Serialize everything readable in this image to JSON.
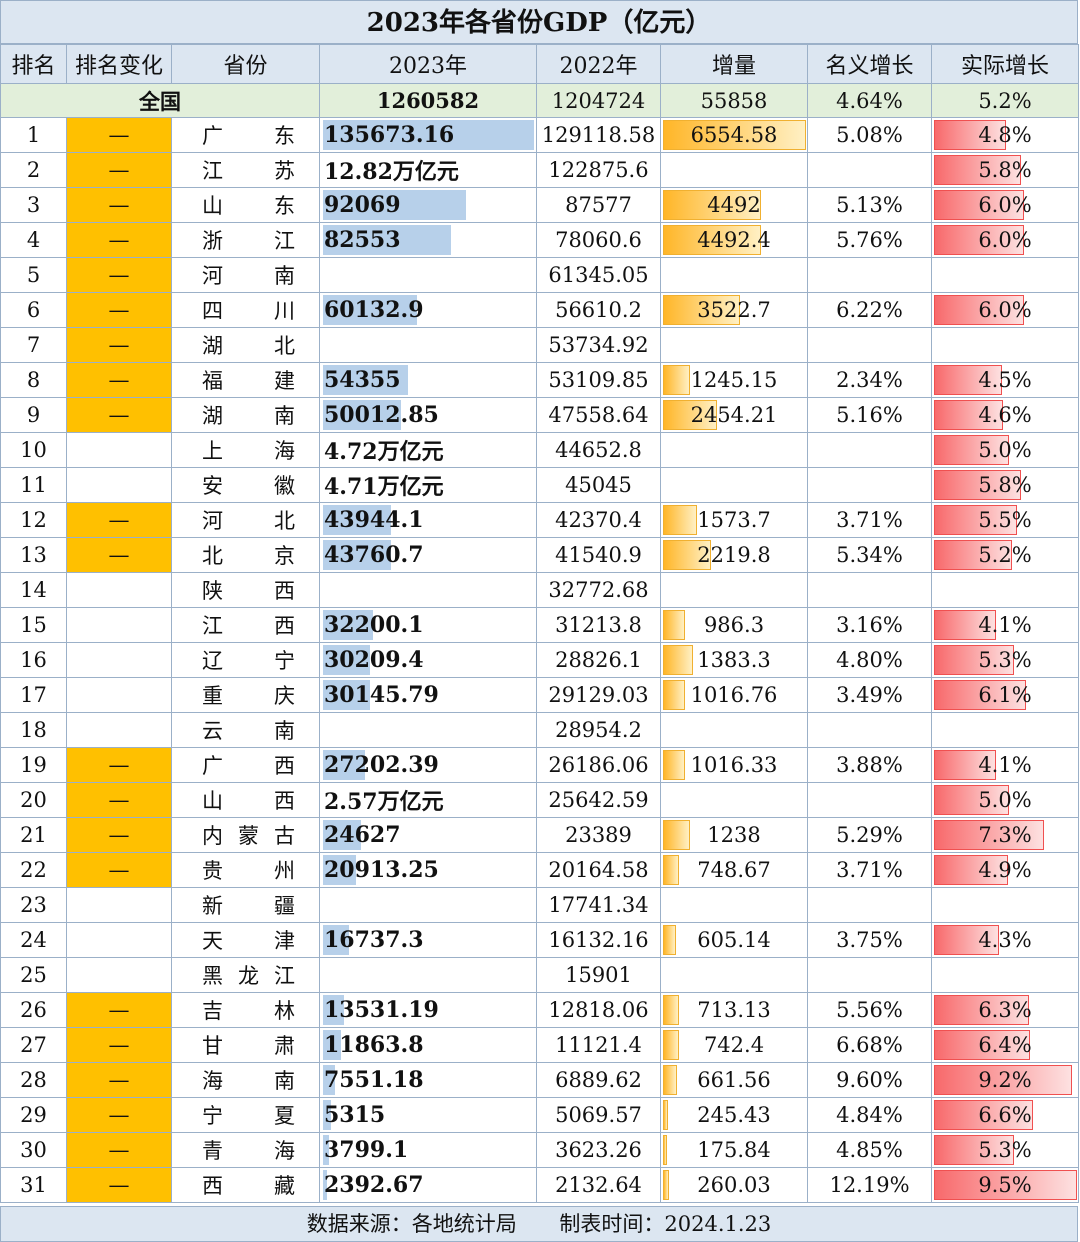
{
  "title": "2023年各省份GDP（亿元）",
  "headers": [
    "排名",
    "排名变化",
    "省份",
    "2023年",
    "2022年",
    "增量",
    "名义增长",
    "实际增长"
  ],
  "national": {
    "name": "全国",
    "gdp2023": "1260582",
    "gdp2022": "1204724",
    "increase": "55858",
    "nominal": "4.64%",
    "real": "5.2%"
  },
  "colors": {
    "header_bg": "#dce6f1",
    "national_bg": "#e2efda",
    "change_highlight": "#ffc000",
    "gdp_bar": "#b7d0ea",
    "increase_bar": "#ffb628",
    "real_bar": "#f8696b"
  },
  "scale": {
    "gdp_max": 135673.16,
    "increase_max": 6554.58,
    "real_max": 9.5
  },
  "rows": [
    {
      "rank": "1",
      "change": "—",
      "hl": true,
      "province": "广东",
      "gdp2023": "135673.16",
      "gdp_num": 135673.16,
      "gdp2022": "129118.58",
      "increase": "6554.58",
      "inc_num": 6554.58,
      "nominal": "5.08%",
      "real": "4.8%",
      "real_num": 4.8
    },
    {
      "rank": "2",
      "change": "—",
      "hl": true,
      "province": "江苏",
      "gdp2023": "12.82万亿元",
      "gdp_num": null,
      "gdp2022": "122875.6",
      "increase": "",
      "inc_num": null,
      "nominal": "",
      "real": "5.8%",
      "real_num": 5.8
    },
    {
      "rank": "3",
      "change": "—",
      "hl": true,
      "province": "山东",
      "gdp2023": "92069",
      "gdp_num": 92069,
      "gdp2022": "87577",
      "increase": "4492",
      "inc_num": 4492,
      "nominal": "5.13%",
      "real": "6.0%",
      "real_num": 6.0
    },
    {
      "rank": "4",
      "change": "—",
      "hl": true,
      "province": "浙江",
      "gdp2023": "82553",
      "gdp_num": 82553,
      "gdp2022": "78060.6",
      "increase": "4492.4",
      "inc_num": 4492.4,
      "nominal": "5.76%",
      "real": "6.0%",
      "real_num": 6.0
    },
    {
      "rank": "5",
      "change": "—",
      "hl": true,
      "province": "河南",
      "gdp2023": "",
      "gdp_num": null,
      "gdp2022": "61345.05",
      "increase": "",
      "inc_num": null,
      "nominal": "",
      "real": "",
      "real_num": null
    },
    {
      "rank": "6",
      "change": "—",
      "hl": true,
      "province": "四川",
      "gdp2023": "60132.9",
      "gdp_num": 60132.9,
      "gdp2022": "56610.2",
      "increase": "3522.7",
      "inc_num": 3522.7,
      "nominal": "6.22%",
      "real": "6.0%",
      "real_num": 6.0
    },
    {
      "rank": "7",
      "change": "—",
      "hl": true,
      "province": "湖北",
      "gdp2023": "",
      "gdp_num": null,
      "gdp2022": "53734.92",
      "increase": "",
      "inc_num": null,
      "nominal": "",
      "real": "",
      "real_num": null
    },
    {
      "rank": "8",
      "change": "—",
      "hl": true,
      "province": "福建",
      "gdp2023": "54355",
      "gdp_num": 54355,
      "gdp2022": "53109.85",
      "increase": "1245.15",
      "inc_num": 1245.15,
      "nominal": "2.34%",
      "real": "4.5%",
      "real_num": 4.5
    },
    {
      "rank": "9",
      "change": "—",
      "hl": true,
      "province": "湖南",
      "gdp2023": "50012.85",
      "gdp_num": 50012.85,
      "gdp2022": "47558.64",
      "increase": "2454.21",
      "inc_num": 2454.21,
      "nominal": "5.16%",
      "real": "4.6%",
      "real_num": 4.6
    },
    {
      "rank": "10",
      "change": "",
      "hl": false,
      "province": "上海",
      "gdp2023": "4.72万亿元",
      "gdp_num": null,
      "gdp2022": "44652.8",
      "increase": "",
      "inc_num": null,
      "nominal": "",
      "real": "5.0%",
      "real_num": 5.0
    },
    {
      "rank": "11",
      "change": "",
      "hl": false,
      "province": "安徽",
      "gdp2023": "4.71万亿元",
      "gdp_num": null,
      "gdp2022": "45045",
      "increase": "",
      "inc_num": null,
      "nominal": "",
      "real": "5.8%",
      "real_num": 5.8
    },
    {
      "rank": "12",
      "change": "—",
      "hl": true,
      "province": "河北",
      "gdp2023": "43944.1",
      "gdp_num": 43944.1,
      "gdp2022": "42370.4",
      "increase": "1573.7",
      "inc_num": 1573.7,
      "nominal": "3.71%",
      "real": "5.5%",
      "real_num": 5.5
    },
    {
      "rank": "13",
      "change": "—",
      "hl": true,
      "province": "北京",
      "gdp2023": "43760.7",
      "gdp_num": 43760.7,
      "gdp2022": "41540.9",
      "increase": "2219.8",
      "inc_num": 2219.8,
      "nominal": "5.34%",
      "real": "5.2%",
      "real_num": 5.2
    },
    {
      "rank": "14",
      "change": "",
      "hl": false,
      "province": "陕西",
      "gdp2023": "",
      "gdp_num": null,
      "gdp2022": "32772.68",
      "increase": "",
      "inc_num": null,
      "nominal": "",
      "real": "",
      "real_num": null
    },
    {
      "rank": "15",
      "change": "",
      "hl": false,
      "province": "江西",
      "gdp2023": "32200.1",
      "gdp_num": 32200.1,
      "gdp2022": "31213.8",
      "increase": "986.3",
      "inc_num": 986.3,
      "nominal": "3.16%",
      "real": "4.1%",
      "real_num": 4.1
    },
    {
      "rank": "16",
      "change": "",
      "hl": false,
      "province": "辽宁",
      "gdp2023": "30209.4",
      "gdp_num": 30209.4,
      "gdp2022": "28826.1",
      "increase": "1383.3",
      "inc_num": 1383.3,
      "nominal": "4.80%",
      "real": "5.3%",
      "real_num": 5.3
    },
    {
      "rank": "17",
      "change": "",
      "hl": false,
      "province": "重庆",
      "gdp2023": "30145.79",
      "gdp_num": 30145.79,
      "gdp2022": "29129.03",
      "increase": "1016.76",
      "inc_num": 1016.76,
      "nominal": "3.49%",
      "real": "6.1%",
      "real_num": 6.1
    },
    {
      "rank": "18",
      "change": "",
      "hl": false,
      "province": "云南",
      "gdp2023": "",
      "gdp_num": null,
      "gdp2022": "28954.2",
      "increase": "",
      "inc_num": null,
      "nominal": "",
      "real": "",
      "real_num": null
    },
    {
      "rank": "19",
      "change": "—",
      "hl": true,
      "province": "广西",
      "gdp2023": "27202.39",
      "gdp_num": 27202.39,
      "gdp2022": "26186.06",
      "increase": "1016.33",
      "inc_num": 1016.33,
      "nominal": "3.88%",
      "real": "4.1%",
      "real_num": 4.1
    },
    {
      "rank": "20",
      "change": "—",
      "hl": true,
      "province": "山西",
      "gdp2023": "2.57万亿元",
      "gdp_num": null,
      "gdp2022": "25642.59",
      "increase": "",
      "inc_num": null,
      "nominal": "",
      "real": "5.0%",
      "real_num": 5.0
    },
    {
      "rank": "21",
      "change": "—",
      "hl": true,
      "province": "内蒙古",
      "gdp2023": "24627",
      "gdp_num": 24627,
      "gdp2022": "23389",
      "increase": "1238",
      "inc_num": 1238,
      "nominal": "5.29%",
      "real": "7.3%",
      "real_num": 7.3
    },
    {
      "rank": "22",
      "change": "—",
      "hl": true,
      "province": "贵州",
      "gdp2023": "20913.25",
      "gdp_num": 20913.25,
      "gdp2022": "20164.58",
      "increase": "748.67",
      "inc_num": 748.67,
      "nominal": "3.71%",
      "real": "4.9%",
      "real_num": 4.9
    },
    {
      "rank": "23",
      "change": "",
      "hl": false,
      "province": "新疆",
      "gdp2023": "",
      "gdp_num": null,
      "gdp2022": "17741.34",
      "increase": "",
      "inc_num": null,
      "nominal": "",
      "real": "",
      "real_num": null
    },
    {
      "rank": "24",
      "change": "",
      "hl": false,
      "province": "天津",
      "gdp2023": "16737.3",
      "gdp_num": 16737.3,
      "gdp2022": "16132.16",
      "increase": "605.14",
      "inc_num": 605.14,
      "nominal": "3.75%",
      "real": "4.3%",
      "real_num": 4.3
    },
    {
      "rank": "25",
      "change": "",
      "hl": false,
      "province": "黑龙江",
      "gdp2023": "",
      "gdp_num": null,
      "gdp2022": "15901",
      "increase": "",
      "inc_num": null,
      "nominal": "",
      "real": "",
      "real_num": null
    },
    {
      "rank": "26",
      "change": "—",
      "hl": true,
      "province": "吉林",
      "gdp2023": "13531.19",
      "gdp_num": 13531.19,
      "gdp2022": "12818.06",
      "increase": "713.13",
      "inc_num": 713.13,
      "nominal": "5.56%",
      "real": "6.3%",
      "real_num": 6.3
    },
    {
      "rank": "27",
      "change": "—",
      "hl": true,
      "province": "甘肃",
      "gdp2023": "11863.8",
      "gdp_num": 11863.8,
      "gdp2022": "11121.4",
      "increase": "742.4",
      "inc_num": 742.4,
      "nominal": "6.68%",
      "real": "6.4%",
      "real_num": 6.4
    },
    {
      "rank": "28",
      "change": "—",
      "hl": true,
      "province": "海南",
      "gdp2023": "7551.18",
      "gdp_num": 7551.18,
      "gdp2022": "6889.62",
      "increase": "661.56",
      "inc_num": 661.56,
      "nominal": "9.60%",
      "real": "9.2%",
      "real_num": 9.2
    },
    {
      "rank": "29",
      "change": "—",
      "hl": true,
      "province": "宁夏",
      "gdp2023": "5315",
      "gdp_num": 5315,
      "gdp2022": "5069.57",
      "increase": "245.43",
      "inc_num": 245.43,
      "nominal": "4.84%",
      "real": "6.6%",
      "real_num": 6.6
    },
    {
      "rank": "30",
      "change": "—",
      "hl": true,
      "province": "青海",
      "gdp2023": "3799.1",
      "gdp_num": 3799.1,
      "gdp2022": "3623.26",
      "increase": "175.84",
      "inc_num": 175.84,
      "nominal": "4.85%",
      "real": "5.3%",
      "real_num": 5.3
    },
    {
      "rank": "31",
      "change": "—",
      "hl": true,
      "province": "西藏",
      "gdp2023": "2392.67",
      "gdp_num": 2392.67,
      "gdp2022": "2132.64",
      "increase": "260.03",
      "inc_num": 260.03,
      "nominal": "12.19%",
      "real": "9.5%",
      "real_num": 9.5
    }
  ],
  "footer": {
    "source": "数据来源：各地统计局",
    "time": "制表时间：2024.1.23"
  }
}
